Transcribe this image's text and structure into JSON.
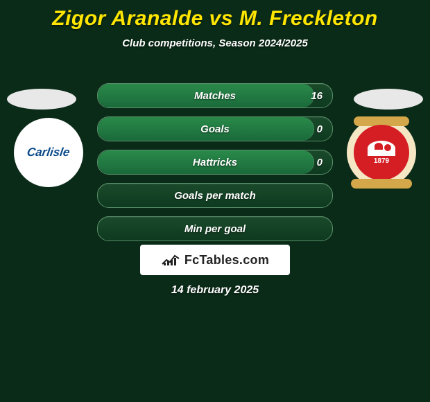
{
  "title": "Zigor Aranalde vs M. Freckleton",
  "subtitle": "Club competitions, Season 2024/2025",
  "date": "14 february 2025",
  "branding_text": "FcTables.com",
  "colors": {
    "background": "#0a2b18",
    "title": "#ffe600",
    "text": "#ffffff",
    "bar_border": "#5a8f6a",
    "bar_bg_top": "#1a4a2a",
    "bar_bg_bot": "#0e3a20",
    "bar_fill_top": "#2a8a4a",
    "bar_fill_bot": "#1a6a3a",
    "branding_bg": "#ffffff",
    "branding_text": "#222222"
  },
  "players": {
    "left": {
      "placeholder": true
    },
    "right": {
      "placeholder": true
    }
  },
  "clubs": {
    "left": {
      "name": "Carlisle",
      "label": "Carlisle"
    },
    "right": {
      "name": "Swindon Town",
      "year": "1879"
    }
  },
  "stats": [
    {
      "label": "Matches",
      "value": "16",
      "fill_pct": 92
    },
    {
      "label": "Goals",
      "value": "0",
      "fill_pct": 92
    },
    {
      "label": "Hattricks",
      "value": "0",
      "fill_pct": 92
    },
    {
      "label": "Goals per match",
      "value": "",
      "fill_pct": 0
    },
    {
      "label": "Min per goal",
      "value": "",
      "fill_pct": 0
    }
  ]
}
